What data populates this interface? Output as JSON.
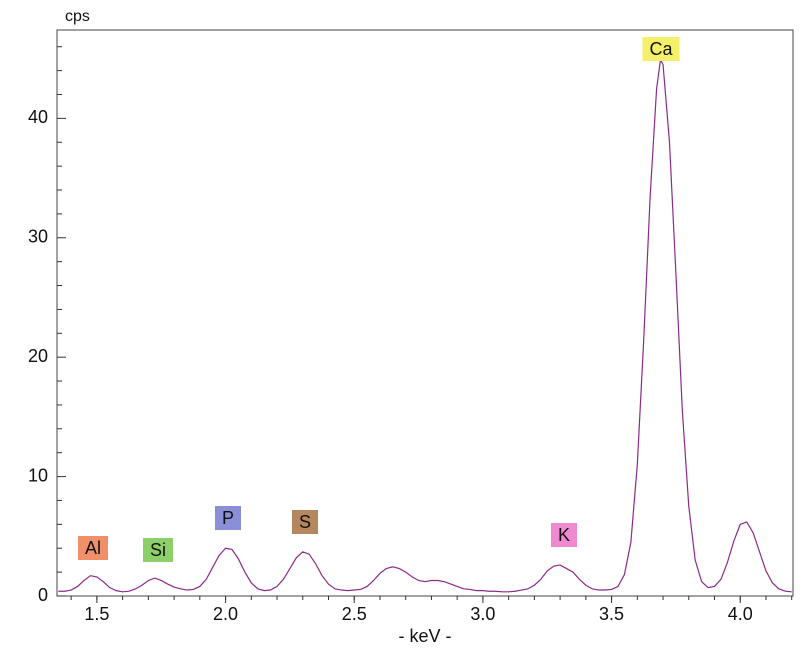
{
  "chart_data": {
    "type": "line",
    "y_label": "cps",
    "x_label": "- keV -",
    "x": [
      1.35,
      1.375,
      1.4,
      1.425,
      1.45,
      1.475,
      1.5,
      1.525,
      1.55,
      1.575,
      1.6,
      1.625,
      1.65,
      1.675,
      1.7,
      1.725,
      1.75,
      1.775,
      1.8,
      1.825,
      1.85,
      1.875,
      1.9,
      1.925,
      1.95,
      1.975,
      2.0,
      2.025,
      2.05,
      2.075,
      2.1,
      2.125,
      2.15,
      2.175,
      2.2,
      2.225,
      2.25,
      2.275,
      2.3,
      2.325,
      2.35,
      2.375,
      2.4,
      2.425,
      2.45,
      2.475,
      2.5,
      2.525,
      2.55,
      2.575,
      2.6,
      2.625,
      2.65,
      2.675,
      2.7,
      2.725,
      2.75,
      2.775,
      2.8,
      2.825,
      2.85,
      2.875,
      2.9,
      2.925,
      2.95,
      2.975,
      3.0,
      3.025,
      3.05,
      3.075,
      3.1,
      3.125,
      3.15,
      3.175,
      3.2,
      3.225,
      3.25,
      3.275,
      3.3,
      3.325,
      3.35,
      3.375,
      3.4,
      3.425,
      3.45,
      3.475,
      3.5,
      3.525,
      3.55,
      3.575,
      3.6,
      3.625,
      3.65,
      3.675,
      3.69,
      3.7,
      3.725,
      3.75,
      3.775,
      3.8,
      3.825,
      3.85,
      3.875,
      3.9,
      3.925,
      3.95,
      3.975,
      4.0,
      4.025,
      4.05,
      4.075,
      4.1,
      4.125,
      4.15,
      4.175,
      4.2
    ],
    "series": [
      {
        "color": "#8b2a8b",
        "values": [
          0.4,
          0.4,
          0.5,
          0.8,
          1.3,
          1.7,
          1.6,
          1.2,
          0.7,
          0.45,
          0.35,
          0.4,
          0.6,
          0.9,
          1.3,
          1.5,
          1.3,
          1.0,
          0.75,
          0.6,
          0.5,
          0.55,
          0.8,
          1.4,
          2.4,
          3.4,
          4.0,
          3.9,
          3.1,
          2.0,
          1.1,
          0.6,
          0.45,
          0.5,
          0.8,
          1.4,
          2.3,
          3.2,
          3.7,
          3.5,
          2.7,
          1.7,
          1.0,
          0.6,
          0.5,
          0.45,
          0.5,
          0.55,
          0.8,
          1.3,
          1.9,
          2.3,
          2.45,
          2.3,
          2.0,
          1.6,
          1.3,
          1.2,
          1.3,
          1.3,
          1.2,
          1.0,
          0.8,
          0.6,
          0.55,
          0.45,
          0.45,
          0.4,
          0.4,
          0.35,
          0.35,
          0.4,
          0.5,
          0.6,
          0.9,
          1.4,
          2.1,
          2.5,
          2.6,
          2.3,
          2.0,
          1.4,
          0.9,
          0.6,
          0.5,
          0.5,
          0.55,
          0.8,
          1.8,
          4.5,
          11.0,
          21.5,
          33.5,
          42.5,
          44.9,
          44.5,
          38.0,
          27.0,
          15.5,
          7.5,
          3.0,
          1.2,
          0.7,
          0.8,
          1.4,
          2.8,
          4.6,
          6.0,
          6.2,
          5.3,
          3.7,
          2.1,
          1.1,
          0.6,
          0.4,
          0.35
        ]
      }
    ],
    "xlim": [
      1.345,
      4.205
    ],
    "ylim": [
      0,
      47.4
    ],
    "xticks": [
      1.5,
      {
        "value": 2,
        "label": "2.0"
      },
      2.5,
      {
        "value": 3,
        "label": "3.0"
      },
      3.5,
      {
        "value": 4,
        "label": "4.0"
      }
    ],
    "yticks": [
      0,
      10,
      20,
      30,
      40
    ],
    "xminorticks": [
      1.4,
      1.5,
      1.6,
      1.7,
      1.8,
      1.9,
      2.0,
      2.1,
      2.2,
      2.3,
      2.4,
      2.5,
      2.6,
      2.7,
      2.8,
      2.9,
      3.0,
      3.1,
      3.2,
      3.3,
      3.4,
      3.5,
      3.6,
      3.7,
      3.8,
      3.9,
      4.0,
      4.1,
      4.2
    ],
    "yminorticks": [
      2,
      4,
      6,
      8,
      12,
      14,
      16,
      18,
      22,
      24,
      26,
      28,
      32,
      34,
      36,
      38,
      42,
      44,
      46
    ],
    "grid": false,
    "annotations": [
      {
        "text": "Al",
        "color": "#f0906a"
      },
      {
        "text": "Si",
        "color": "#8dd06a"
      },
      {
        "text": "P",
        "color": "#8a8fd8"
      },
      {
        "text": "S",
        "color": "#b5875e"
      },
      {
        "text": "K",
        "color": "#f08ad0"
      },
      {
        "text": "Ca",
        "color": "#f5f06a"
      }
    ]
  }
}
